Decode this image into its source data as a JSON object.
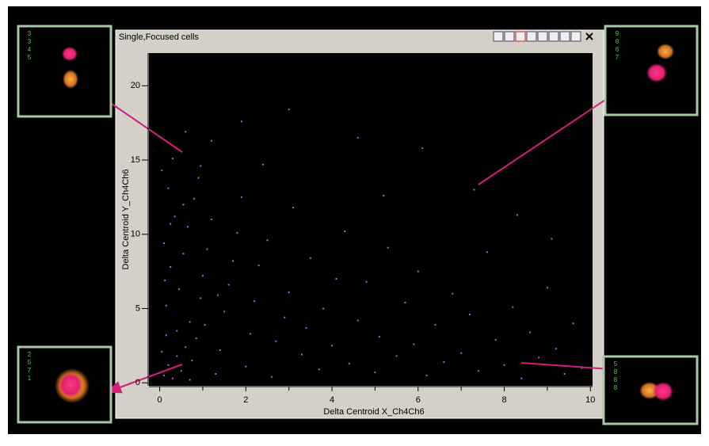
{
  "chart_data": {
    "type": "scatter",
    "title": "Single,Focused cells",
    "x_label": "Delta Centroid X_Ch4Ch6",
    "y_label": "Delta Centroid Y_Ch4Ch6",
    "color": "#7474ff",
    "xlim": [
      -0.25,
      10.05
    ],
    "ylim": [
      -0.2,
      22.2
    ],
    "xticks": [
      0,
      2,
      4,
      6,
      8,
      10
    ],
    "yticks": [
      0,
      5,
      10,
      15,
      20
    ],
    "x": [
      0.1,
      0.2,
      0.3,
      0.05,
      0.4,
      0.15,
      0.25,
      0.1,
      0.35,
      0.2,
      0.05,
      0.5,
      0.6,
      0.7,
      0.45,
      0.55,
      0.65,
      0.8,
      0.9,
      0.75,
      0.85,
      0.95,
      1.0,
      1.1,
      1.2,
      1.3,
      1.4,
      1.5,
      1.6,
      1.7,
      1.8,
      1.9,
      2.0,
      2.1,
      2.2,
      2.3,
      2.5,
      2.6,
      2.7,
      2.9,
      3.0,
      3.1,
      3.3,
      3.4,
      3.5,
      3.7,
      3.8,
      4.0,
      4.1,
      4.3,
      4.4,
      4.6,
      4.8,
      5.0,
      5.1,
      5.3,
      5.5,
      5.7,
      5.9,
      6.0,
      6.2,
      6.4,
      6.6,
      6.8,
      7.0,
      7.2,
      7.4,
      7.6,
      7.8,
      8.0,
      8.2,
      8.4,
      8.6,
      8.8,
      9.0,
      9.2,
      9.4,
      9.6,
      9.8,
      0.3,
      1.2,
      2.4,
      4.6,
      6.1,
      8.3,
      9.1,
      3.0,
      7.3,
      0.6,
      1.9,
      5.2,
      0.15,
      0.4,
      0.7,
      0.25,
      0.55,
      1.05,
      1.35,
      0.95,
      0.12
    ],
    "values": [
      0.5,
      1.2,
      0.3,
      2.1,
      3.5,
      5.2,
      7.8,
      9.4,
      11.2,
      13.1,
      14.3,
      0.8,
      2.4,
      4.1,
      6.3,
      8.7,
      10.5,
      12.4,
      13.8,
      1.5,
      3.0,
      5.7,
      7.2,
      9.0,
      11.0,
      0.6,
      2.2,
      4.8,
      6.6,
      8.2,
      10.1,
      12.5,
      1.1,
      3.3,
      5.5,
      7.9,
      9.6,
      0.4,
      2.8,
      4.4,
      6.1,
      11.8,
      1.9,
      3.7,
      8.4,
      0.9,
      5.0,
      2.5,
      7.0,
      10.2,
      1.3,
      4.2,
      6.8,
      0.7,
      3.1,
      9.1,
      1.8,
      5.4,
      2.6,
      7.5,
      0.5,
      3.9,
      1.4,
      6.0,
      2.0,
      4.6,
      0.8,
      8.8,
      2.9,
      1.2,
      5.1,
      0.3,
      3.4,
      1.7,
      6.4,
      2.3,
      0.6,
      4.0,
      1.0,
      15.1,
      16.3,
      14.7,
      16.5,
      15.8,
      11.3,
      9.7,
      18.4,
      13.0,
      16.9,
      17.6,
      12.6,
      3.2,
      1.8,
      0.2,
      10.7,
      12.0,
      3.9,
      5.9,
      14.6,
      6.9
    ]
  },
  "thumbnails": [
    {
      "label": "3345"
    },
    {
      "label": "9867"
    },
    {
      "label": "2571"
    },
    {
      "label": "5888"
    }
  ]
}
